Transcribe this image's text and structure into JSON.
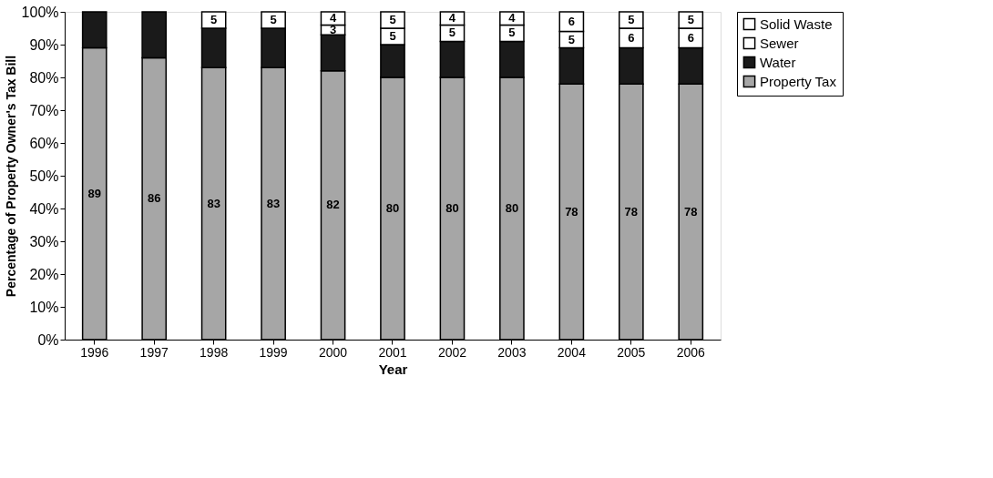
{
  "chart_data": {
    "type": "bar",
    "stacked": true,
    "xlabel": "Year",
    "ylabel": "Percentage of Property Owner's Tax Bill",
    "categories": [
      "1996",
      "1997",
      "1998",
      "1999",
      "2000",
      "2001",
      "2002",
      "2003",
      "2004",
      "2005",
      "2006"
    ],
    "series": [
      {
        "name": "Property Tax",
        "color": "#a6a6a6",
        "values": [
          89,
          86,
          83,
          83,
          82,
          80,
          80,
          80,
          78,
          78,
          78
        ],
        "value_labels": [
          "89",
          "86",
          "83",
          "83",
          "82",
          "80",
          "80",
          "80",
          "78",
          "78",
          "78"
        ]
      },
      {
        "name": "Water",
        "color": "#1a1a1a",
        "values": [
          11,
          14,
          12,
          12,
          11,
          10,
          11,
          11,
          11,
          11,
          11
        ]
      },
      {
        "name": "Sewer",
        "color": "#ffffff",
        "values": [
          null,
          null,
          null,
          null,
          3,
          5,
          5,
          5,
          5,
          6,
          6
        ],
        "value_labels": [
          null,
          null,
          null,
          null,
          "3",
          "5",
          "5",
          "5",
          "5",
          "6",
          "6"
        ]
      },
      {
        "name": "Solid Waste",
        "color": "#ffffff",
        "values": [
          null,
          null,
          5,
          5,
          4,
          5,
          4,
          4,
          6,
          5,
          5
        ],
        "value_labels": [
          null,
          null,
          "5",
          "5",
          "4",
          "5",
          "4",
          "4",
          "6",
          "5",
          "5"
        ]
      }
    ],
    "ylim": [
      0,
      100
    ],
    "yticks": [
      {
        "value": 0,
        "label": "0%"
      },
      {
        "value": 10,
        "label": "10%"
      },
      {
        "value": 20,
        "label": "20%"
      },
      {
        "value": 30,
        "label": "30%"
      },
      {
        "value": 40,
        "label": "40%"
      },
      {
        "value": 50,
        "label": "50%"
      },
      {
        "value": 60,
        "label": "60%"
      },
      {
        "value": 70,
        "label": "70%"
      },
      {
        "value": 80,
        "label": "80%"
      },
      {
        "value": 90,
        "label": "90%"
      },
      {
        "value": 100,
        "label": "100%"
      }
    ],
    "grid": false,
    "legend": "right"
  }
}
